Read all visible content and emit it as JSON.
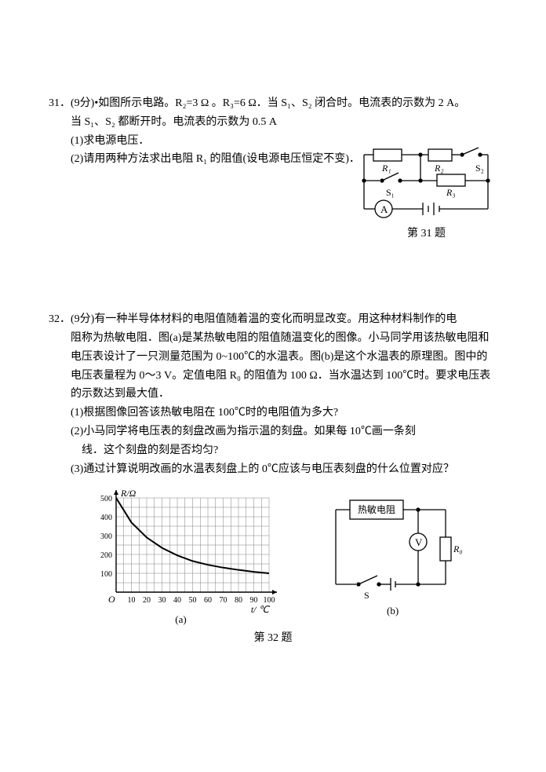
{
  "q31": {
    "number": "31．",
    "points": "(9分)",
    "bullet": "•",
    "text1": "如图所示电路。R₂=3 Ω 。R₃=6 Ω．当 S₁、S₂ 闭合时。电流表的示数为 2 A。",
    "text2": "当 S₁、S₂ 都断开时。电流表的示数为 0.5 A",
    "part1": "(1)求电源电压．",
    "part2": "(2)请用两种方法求出电阻 R₁ 的阻值(设电源电压恒定不变)．",
    "circuit": {
      "labels": {
        "R1": "R₁",
        "R2": "R₂",
        "R3": "R₃",
        "S1": "S₁",
        "S2": "S₂",
        "A": "A"
      },
      "background_color": "#ffffff",
      "line_color": "#000000",
      "line_width": 1.2
    },
    "caption": "第 31 题"
  },
  "q32": {
    "number": "32．",
    "points": "(9分)",
    "text1": "有一种半导体材料的电阻值随着温的变化而明显改变。用这种材料制作的电阻称为热敏电阻．图(a)是某热敏电阻的阻值随温变化的图像。小马同学用该热敏电阻和电压表设计了一只测量范围为 0~100℃的水温表。图(b)是这个水温表的原理图。图中的电压表量程为 0～3 V。定值电阻 R₀ 的阻值为 100 Ω．当水温达到 100℃时。要求电压表的示数达到最大值．",
    "part1": "(1)根据图像回答该热敏电阻在 100℃时的电阻值为多大?",
    "part2": "(2)小马同学将电压表的刻盘改画为指示温的刻盘。如果每 10℃画一条刻线．这个刻盘的刻是否均匀?",
    "part3": "(3)通过计算说明改画的水温表刻盘上的 0℃应该与电压表刻盘的什么位置对应？",
    "chart": {
      "type": "line",
      "ylabel": "R/Ω",
      "xlabel": "t/ ℃",
      "xlim": [
        0,
        100
      ],
      "ylim": [
        0,
        500
      ],
      "xticks": [
        0,
        10,
        20,
        30,
        40,
        50,
        60,
        70,
        80,
        90,
        100
      ],
      "yticks": [
        0,
        100,
        200,
        300,
        400,
        500
      ],
      "data_x": [
        0,
        10,
        20,
        30,
        40,
        50,
        60,
        70,
        80,
        90,
        100
      ],
      "data_y": [
        500,
        370,
        290,
        235,
        195,
        165,
        145,
        130,
        118,
        108,
        100
      ],
      "line_color": "#000000",
      "line_width": 2,
      "grid_color": "#808080",
      "grid_width": 0.5,
      "background_color": "#ffffff",
      "axis_arrow": true,
      "caption": "(a)"
    },
    "circuit": {
      "labels": {
        "thermistor": "热敏电阻",
        "V": "V",
        "R0": "R₀",
        "S": "S"
      },
      "line_color": "#000000",
      "line_width": 1.2,
      "caption": "(b)"
    },
    "caption": "第 32 题"
  }
}
